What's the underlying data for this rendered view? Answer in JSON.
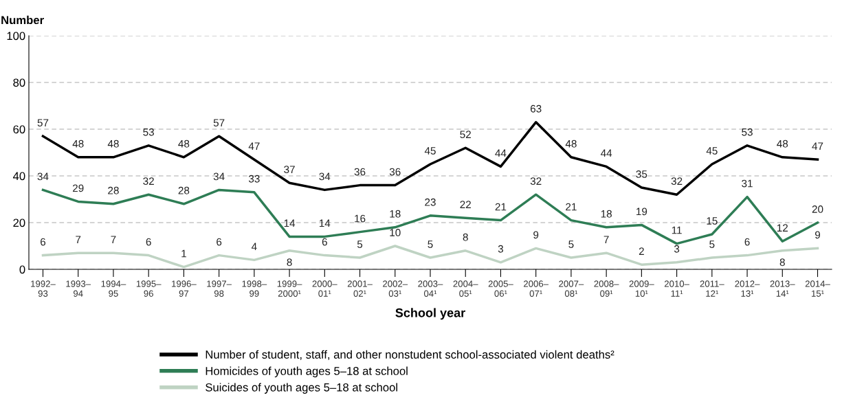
{
  "chart_data": {
    "type": "line",
    "xlabel": "School year",
    "ylabel": "Number",
    "categories": [
      "1992–\n93",
      "1993–\n94",
      "1994–\n95",
      "1995–\n96",
      "1996–\n97",
      "1997–\n98",
      "1998–\n99",
      "1999–\n2000¹",
      "2000–\n01¹",
      "2001–\n02¹",
      "2002–\n03¹",
      "2003–\n04¹",
      "2004–\n05¹",
      "2005–\n06¹",
      "2006–\n07¹",
      "2007–\n08¹",
      "2008–\n09¹",
      "2009–\n10¹",
      "2010–\n11¹",
      "2011–\n12¹",
      "2012–\n13¹",
      "2013–\n14¹",
      "2014–\n15¹"
    ],
    "series": [
      {
        "name": "Number of student, staff, and other nonstudent school-associated violent deaths²",
        "color": "#000000",
        "values": [
          57,
          48,
          48,
          53,
          48,
          57,
          47,
          37,
          34,
          36,
          36,
          45,
          52,
          44,
          63,
          48,
          44,
          35,
          32,
          45,
          53,
          48,
          47
        ]
      },
      {
        "name": "Homicides of youth ages 5–18 at school",
        "color": "#2e7d55",
        "values": [
          34,
          29,
          28,
          32,
          28,
          34,
          33,
          14,
          14,
          16,
          18,
          23,
          22,
          21,
          32,
          21,
          18,
          19,
          11,
          15,
          31,
          12,
          20
        ]
      },
      {
        "name": "Suicides of youth ages 5–18 at school",
        "color": "#bfd3c3",
        "values": [
          6,
          7,
          7,
          6,
          1,
          6,
          4,
          8,
          6,
          5,
          10,
          5,
          8,
          3,
          9,
          5,
          7,
          2,
          3,
          5,
          6,
          8,
          9
        ]
      }
    ],
    "ylim": [
      0,
      100
    ],
    "yticks": [
      0,
      20,
      40,
      60,
      80,
      100
    ],
    "grid": "y",
    "legend": "bottom",
    "data_labels": true,
    "marker": "none",
    "line_style": "solid"
  }
}
